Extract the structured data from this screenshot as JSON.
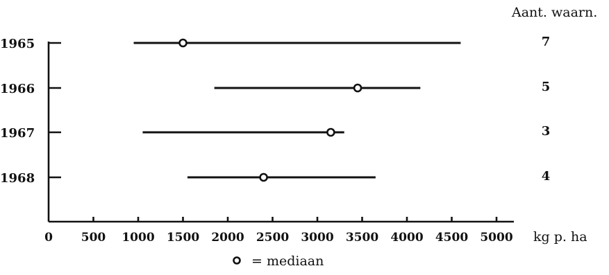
{
  "chart_data": {
    "type": "range",
    "column_header": "Aant. waarn.",
    "x_unit": "kg p. ha",
    "x_ticks": [
      0,
      500,
      1000,
      1500,
      2000,
      2500,
      3000,
      3500,
      4000,
      4500,
      5000
    ],
    "xlim": [
      0,
      5000
    ],
    "legend_symbol": "o",
    "legend_text": "= mediaan",
    "rows": [
      {
        "year": "1965",
        "min": 950,
        "max": 4600,
        "median": 1500,
        "count": "7"
      },
      {
        "year": "1966",
        "min": 1850,
        "max": 4150,
        "median": 3450,
        "count": "5"
      },
      {
        "year": "1967",
        "min": 1050,
        "max": 3300,
        "median": 3150,
        "count": "3"
      },
      {
        "year": "1968",
        "min": 1550,
        "max": 3650,
        "median": 2400,
        "count": "4"
      }
    ]
  }
}
